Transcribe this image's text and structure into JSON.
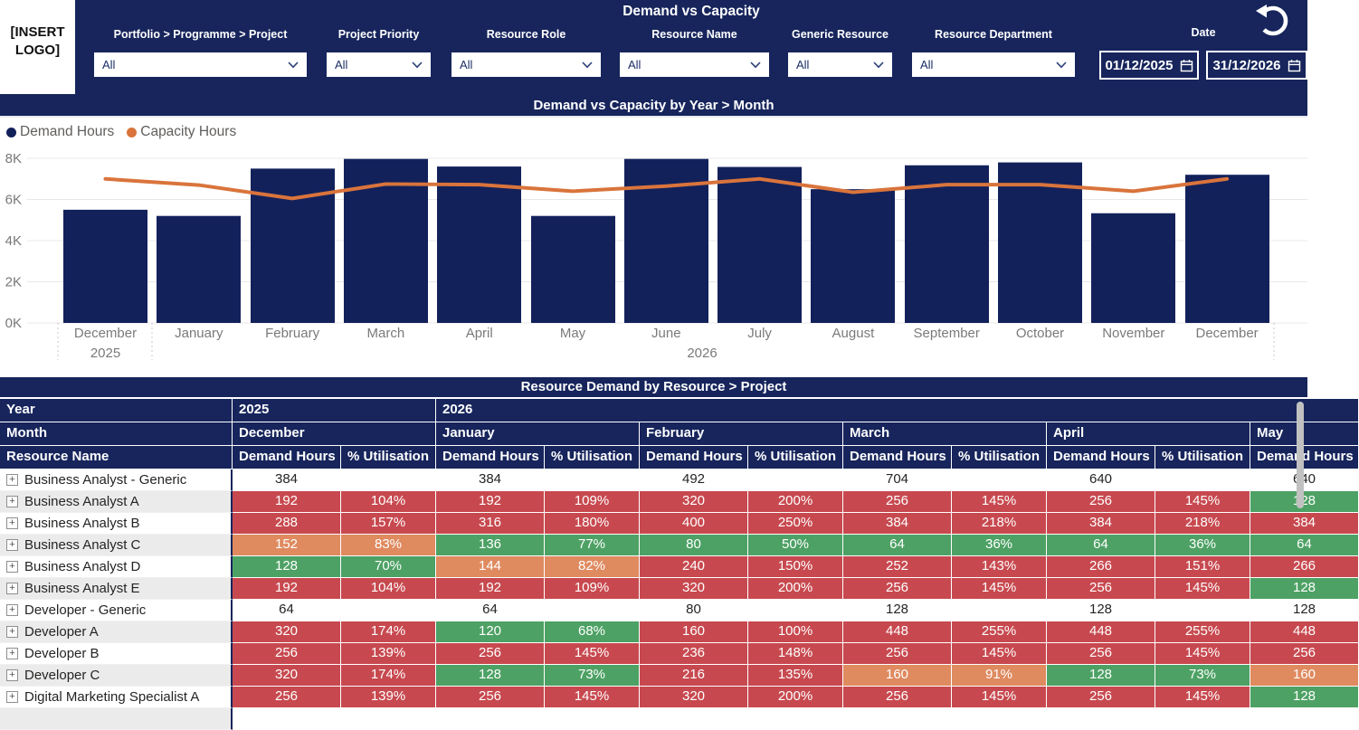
{
  "header": {
    "logo_text": "[INSERT LOGO]",
    "title": "Demand vs Capacity",
    "filters": [
      {
        "label": "Portfolio > Programme > Project",
        "value": "All"
      },
      {
        "label": "Project Priority",
        "value": "All"
      },
      {
        "label": "Resource Role",
        "value": "All"
      },
      {
        "label": "Resource Name",
        "value": "All"
      },
      {
        "label": "Generic Resource",
        "value": "All"
      },
      {
        "label": "Resource Department",
        "value": "All"
      }
    ],
    "date_label": "Date",
    "date_from": "01/12/2025",
    "date_to": "31/12/2026"
  },
  "chart": {
    "title": "Demand vs Capacity by Year > Month",
    "legend": [
      {
        "label": "Demand Hours",
        "color": "#13215B"
      },
      {
        "label": "Capacity Hours",
        "color": "#D9743C"
      }
    ]
  },
  "chart_data": {
    "type": "bar",
    "title": "Demand vs Capacity by Year > Month",
    "categories": [
      "December",
      "January",
      "February",
      "March",
      "April",
      "May",
      "June",
      "July",
      "August",
      "September",
      "October",
      "November",
      "December"
    ],
    "year_labels": [
      {
        "label": "2025",
        "at_category_index": 0
      },
      {
        "label": "2026",
        "centered_under": "January-December 2026"
      }
    ],
    "series": [
      {
        "name": "Demand Hours",
        "type": "bar",
        "color": "#13215B",
        "values": [
          5500,
          5200,
          7500,
          7970,
          7600,
          5200,
          7970,
          7580,
          6500,
          7660,
          7800,
          5330,
          7200
        ]
      },
      {
        "name": "Capacity Hours",
        "type": "line",
        "color": "#D9743C",
        "values": [
          7000,
          6700,
          6050,
          6750,
          6720,
          6400,
          6650,
          7000,
          6350,
          6720,
          6720,
          6400,
          7000
        ]
      }
    ],
    "ylim": [
      0,
      8000
    ],
    "yticks": [
      {
        "v": 0,
        "label": "0K"
      },
      {
        "v": 2000,
        "label": "2K"
      },
      {
        "v": 4000,
        "label": "4K"
      },
      {
        "v": 6000,
        "label": "6K"
      },
      {
        "v": 8000,
        "label": "8K"
      }
    ],
    "grid": true,
    "legend_position": "top-left"
  },
  "table": {
    "title": "Resource Demand by Resource > Project",
    "row_header_labels": {
      "year": "Year",
      "month": "Month",
      "resource": "Resource Name"
    },
    "value_headers": {
      "demand": "Demand Hours",
      "util": "% Utilisation"
    },
    "years": [
      {
        "label": "2025",
        "month_span": 1
      },
      {
        "label": "2026",
        "month_span": 5
      }
    ],
    "months": [
      {
        "label": "December",
        "has_util": true
      },
      {
        "label": "January",
        "has_util": true
      },
      {
        "label": "February",
        "has_util": true
      },
      {
        "label": "March",
        "has_util": true
      },
      {
        "label": "April",
        "has_util": true
      },
      {
        "label": "May",
        "has_util": false
      }
    ],
    "cell_colors": {
      "r": "#C7494F",
      "o": "#DF8A5F",
      "g": "#4DA164",
      "w": "#FFFFFF"
    },
    "rows": [
      {
        "name": "Business Analyst - Generic",
        "cells": [
          [
            "384",
            "w"
          ],
          [
            "",
            "w"
          ],
          [
            "384",
            "w"
          ],
          [
            "",
            "w"
          ],
          [
            "492",
            "w"
          ],
          [
            "",
            "w"
          ],
          [
            "704",
            "w"
          ],
          [
            "",
            "w"
          ],
          [
            "640",
            "w"
          ],
          [
            "",
            "w"
          ],
          [
            "640",
            "w"
          ]
        ]
      },
      {
        "name": "Business Analyst A",
        "cells": [
          [
            "192",
            "r"
          ],
          [
            "104%",
            "r"
          ],
          [
            "192",
            "r"
          ],
          [
            "109%",
            "r"
          ],
          [
            "320",
            "r"
          ],
          [
            "200%",
            "r"
          ],
          [
            "256",
            "r"
          ],
          [
            "145%",
            "r"
          ],
          [
            "256",
            "r"
          ],
          [
            "145%",
            "r"
          ],
          [
            "128",
            "g"
          ]
        ]
      },
      {
        "name": "Business Analyst B",
        "cells": [
          [
            "288",
            "r"
          ],
          [
            "157%",
            "r"
          ],
          [
            "316",
            "r"
          ],
          [
            "180%",
            "r"
          ],
          [
            "400",
            "r"
          ],
          [
            "250%",
            "r"
          ],
          [
            "384",
            "r"
          ],
          [
            "218%",
            "r"
          ],
          [
            "384",
            "r"
          ],
          [
            "218%",
            "r"
          ],
          [
            "384",
            "r"
          ]
        ]
      },
      {
        "name": "Business Analyst C",
        "cells": [
          [
            "152",
            "o"
          ],
          [
            "83%",
            "o"
          ],
          [
            "136",
            "g"
          ],
          [
            "77%",
            "g"
          ],
          [
            "80",
            "g"
          ],
          [
            "50%",
            "g"
          ],
          [
            "64",
            "g"
          ],
          [
            "36%",
            "g"
          ],
          [
            "64",
            "g"
          ],
          [
            "36%",
            "g"
          ],
          [
            "64",
            "g"
          ]
        ]
      },
      {
        "name": "Business Analyst D",
        "cells": [
          [
            "128",
            "g"
          ],
          [
            "70%",
            "g"
          ],
          [
            "144",
            "o"
          ],
          [
            "82%",
            "o"
          ],
          [
            "240",
            "r"
          ],
          [
            "150%",
            "r"
          ],
          [
            "252",
            "r"
          ],
          [
            "143%",
            "r"
          ],
          [
            "266",
            "r"
          ],
          [
            "151%",
            "r"
          ],
          [
            "266",
            "r"
          ]
        ]
      },
      {
        "name": "Business Analyst E",
        "cells": [
          [
            "192",
            "r"
          ],
          [
            "104%",
            "r"
          ],
          [
            "192",
            "r"
          ],
          [
            "109%",
            "r"
          ],
          [
            "320",
            "r"
          ],
          [
            "200%",
            "r"
          ],
          [
            "256",
            "r"
          ],
          [
            "145%",
            "r"
          ],
          [
            "256",
            "r"
          ],
          [
            "145%",
            "r"
          ],
          [
            "128",
            "g"
          ]
        ]
      },
      {
        "name": "Developer - Generic",
        "cells": [
          [
            "64",
            "w"
          ],
          [
            "",
            "w"
          ],
          [
            "64",
            "w"
          ],
          [
            "",
            "w"
          ],
          [
            "80",
            "w"
          ],
          [
            "",
            "w"
          ],
          [
            "128",
            "w"
          ],
          [
            "",
            "w"
          ],
          [
            "128",
            "w"
          ],
          [
            "",
            "w"
          ],
          [
            "128",
            "w"
          ]
        ]
      },
      {
        "name": "Developer A",
        "cells": [
          [
            "320",
            "r"
          ],
          [
            "174%",
            "r"
          ],
          [
            "120",
            "g"
          ],
          [
            "68%",
            "g"
          ],
          [
            "160",
            "r"
          ],
          [
            "100%",
            "r"
          ],
          [
            "448",
            "r"
          ],
          [
            "255%",
            "r"
          ],
          [
            "448",
            "r"
          ],
          [
            "255%",
            "r"
          ],
          [
            "448",
            "r"
          ]
        ]
      },
      {
        "name": "Developer B",
        "cells": [
          [
            "256",
            "r"
          ],
          [
            "139%",
            "r"
          ],
          [
            "256",
            "r"
          ],
          [
            "145%",
            "r"
          ],
          [
            "236",
            "r"
          ],
          [
            "148%",
            "r"
          ],
          [
            "256",
            "r"
          ],
          [
            "145%",
            "r"
          ],
          [
            "256",
            "r"
          ],
          [
            "145%",
            "r"
          ],
          [
            "256",
            "r"
          ]
        ]
      },
      {
        "name": "Developer C",
        "cells": [
          [
            "320",
            "r"
          ],
          [
            "174%",
            "r"
          ],
          [
            "128",
            "g"
          ],
          [
            "73%",
            "g"
          ],
          [
            "216",
            "r"
          ],
          [
            "135%",
            "r"
          ],
          [
            "160",
            "o"
          ],
          [
            "91%",
            "o"
          ],
          [
            "128",
            "g"
          ],
          [
            "73%",
            "g"
          ],
          [
            "160",
            "o"
          ]
        ]
      },
      {
        "name": "Digital Marketing Specialist A",
        "cells": [
          [
            "256",
            "r"
          ],
          [
            "139%",
            "r"
          ],
          [
            "256",
            "r"
          ],
          [
            "145%",
            "r"
          ],
          [
            "320",
            "r"
          ],
          [
            "200%",
            "r"
          ],
          [
            "256",
            "r"
          ],
          [
            "145%",
            "r"
          ],
          [
            "256",
            "r"
          ],
          [
            "145%",
            "r"
          ],
          [
            "128",
            "g"
          ]
        ]
      },
      {
        "name": "",
        "cells": [
          [
            "",
            "w"
          ],
          [
            "",
            "w"
          ],
          [
            "",
            "w"
          ],
          [
            "",
            "w"
          ],
          [
            "",
            "w"
          ],
          [
            "",
            "w"
          ],
          [
            "",
            "w"
          ],
          [
            "",
            "w"
          ],
          [
            "",
            "w"
          ],
          [
            "",
            "w"
          ],
          [
            "",
            "w"
          ]
        ]
      }
    ]
  }
}
